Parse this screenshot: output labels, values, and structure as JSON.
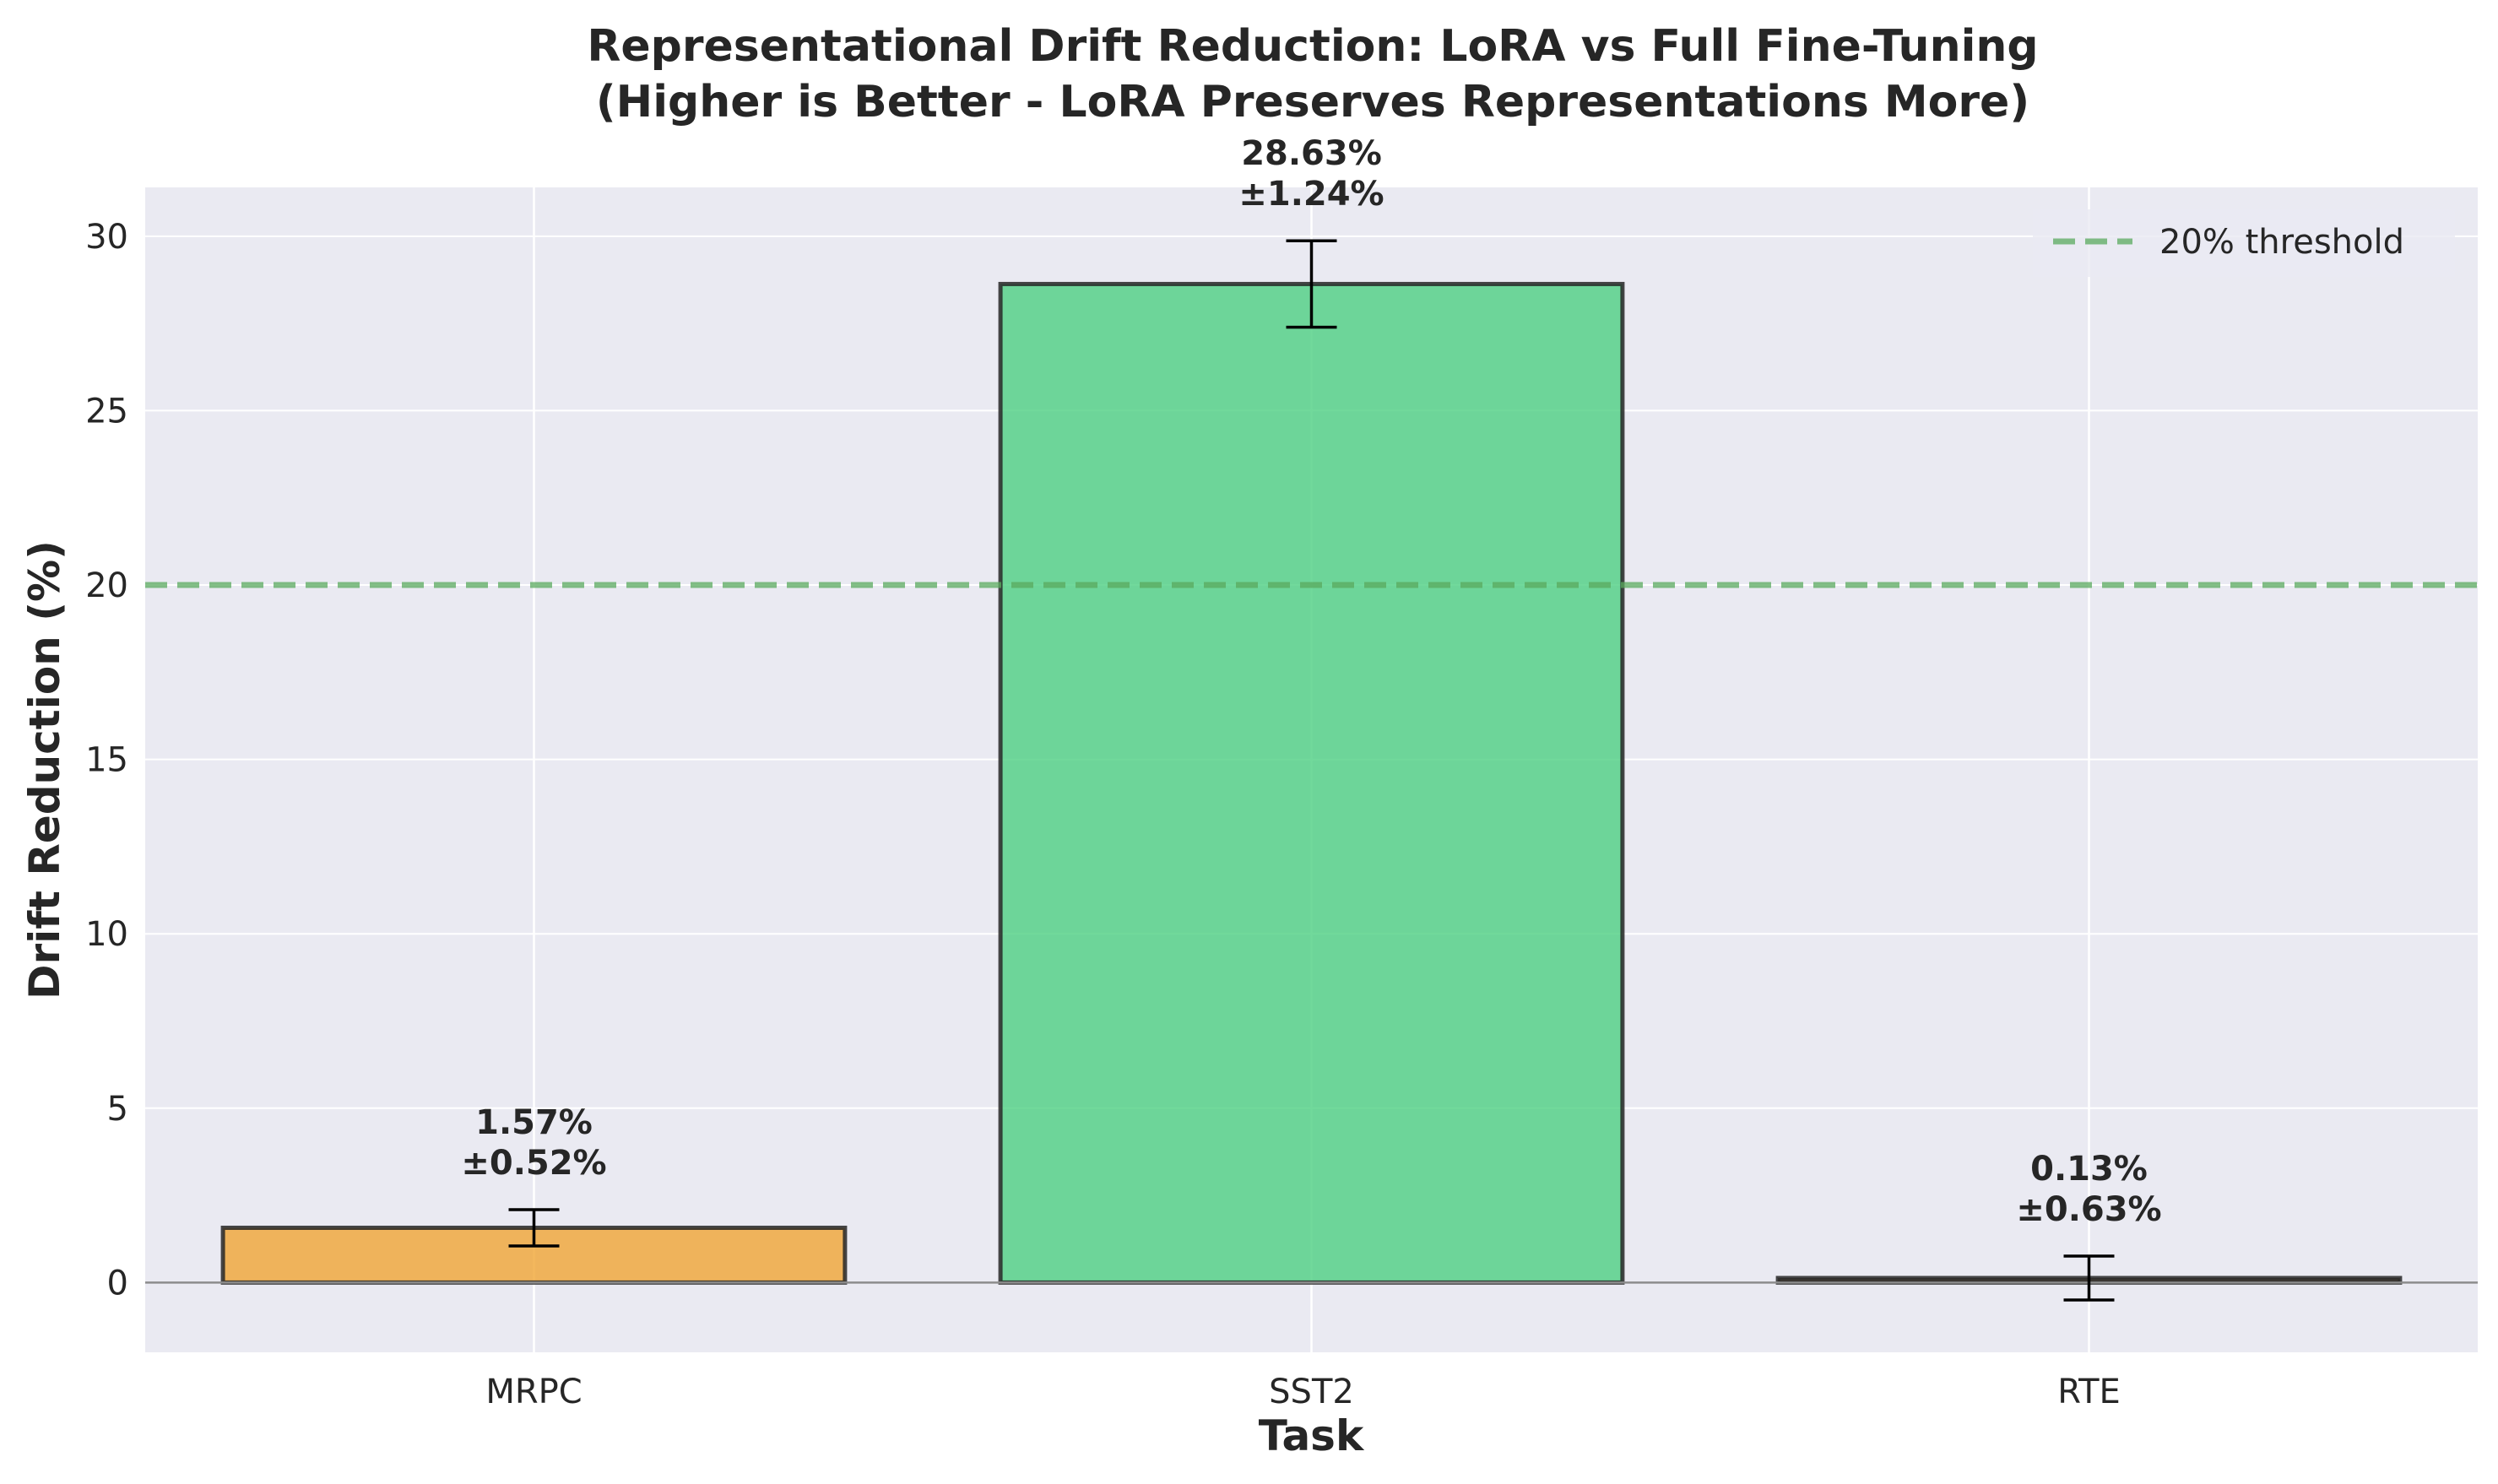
{
  "chart_data": {
    "type": "bar",
    "title": "Representational Drift Reduction: LoRA vs Full Fine-Tuning",
    "subtitle": "(Higher is Better - LoRA Preserves Representations More)",
    "xlabel": "Task",
    "ylabel": "Drift Reduction (%)",
    "categories": [
      "MRPC",
      "SST2",
      "RTE"
    ],
    "values": [
      1.57,
      28.63,
      0.13
    ],
    "errors": [
      0.52,
      1.24,
      0.63
    ],
    "value_labels": [
      "1.57%",
      "28.63%",
      "0.13%"
    ],
    "error_labels": [
      "±0.52%",
      "±1.24%",
      "±0.63%"
    ],
    "bar_colors": [
      "#f0a535",
      "#4dcf82",
      "#4a3a24"
    ],
    "ylim": [
      -2,
      31.4
    ],
    "yticks": [
      0,
      5,
      10,
      15,
      20,
      25,
      30
    ],
    "grid": true,
    "threshold": {
      "value": 20,
      "label": "20% threshold",
      "color": "#5aaa5e"
    },
    "legend_position": "top-right",
    "background": "#eaeaf2"
  }
}
